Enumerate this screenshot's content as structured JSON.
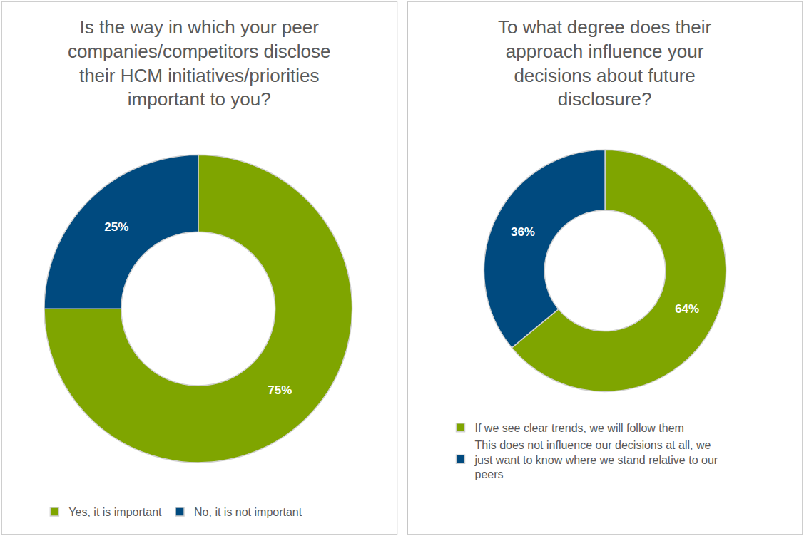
{
  "chart_data": [
    {
      "type": "pie",
      "title": "Is the way in which your peer companies/competitors disclose their HCM initiatives/priorities important to you?",
      "categories": [
        "Yes, it is important",
        "No, it is not important"
      ],
      "values": [
        75,
        25
      ],
      "value_labels": [
        "75%",
        "25%"
      ],
      "colors": [
        "#7fa500",
        "#004a7f"
      ],
      "data_labels": true,
      "legend": "bottom"
    },
    {
      "type": "pie",
      "title": "To what degree does their approach influence your decisions about future disclosure?",
      "categories": [
        "If we see clear trends, we will follow them",
        "This does not influence our decisions at all, we just want to know where we stand relative to our peers"
      ],
      "values": [
        64,
        36
      ],
      "value_labels": [
        "64%",
        "36%"
      ],
      "colors": [
        "#7fa500",
        "#004a7f"
      ],
      "data_labels": true,
      "legend": "bottom"
    }
  ]
}
